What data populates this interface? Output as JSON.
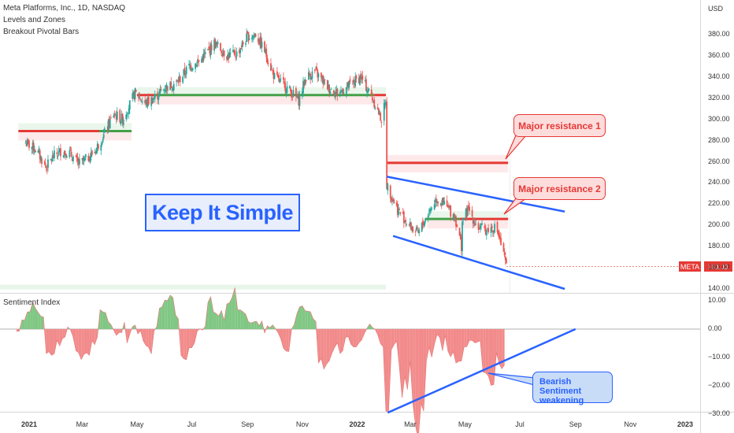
{
  "legend": {
    "title": "Meta Platforms, Inc., 1D, NASDAQ",
    "line2": "Levels and Zones",
    "line3": "Breakout Pivotal Bars"
  },
  "currency": "USD",
  "sentiment_title": "Sentiment Index",
  "keep_it_simple": "Keep It Simple",
  "callouts": {
    "major1": "Major resistance 1",
    "major2": "Major resistance 2",
    "bearish_line1": "Bearish Sentiment",
    "bearish_line2": "weakening"
  },
  "last_price": {
    "symbol": "META",
    "value": "161.11"
  },
  "colors": {
    "up": "#26a69a",
    "down": "#ef5350",
    "resistance": "#e53935",
    "support": "#43a047",
    "trend": "#2962ff",
    "sentiment_pos": "#81c784",
    "sentiment_neg": "#f28b8b"
  },
  "chart_data": [
    {
      "type": "candlestick",
      "title": "Meta Platforms, Inc., 1D, NASDAQ",
      "y_axis_ticks": [
        "380.00",
        "360.00",
        "340.00",
        "320.00",
        "300.00",
        "280.00",
        "260.00",
        "240.00",
        "220.00",
        "200.00",
        "180.00",
        "160.00",
        "140.00"
      ],
      "x_axis_ticks": [
        "2021",
        "Mar",
        "May",
        "Jul",
        "Sep",
        "Nov",
        "2022",
        "Mar",
        "May",
        "Jul",
        "Sep",
        "Nov",
        "2023"
      ],
      "ylim": [
        140,
        390
      ],
      "levels": [
        {
          "kind": "resistance",
          "price": 289,
          "from": "2020-12",
          "to": "2021-04"
        },
        {
          "kind": "support",
          "price": 289,
          "from": "2021-04",
          "to": "2021-05"
        },
        {
          "kind": "resistance",
          "price": 323,
          "from": "2021-05",
          "to": "2021-06"
        },
        {
          "kind": "support",
          "price": 323,
          "from": "2021-06",
          "to": "2022-01"
        },
        {
          "kind": "resistance",
          "price": 323,
          "from": "2022-01",
          "to": "2022-02"
        },
        {
          "kind": "resistance",
          "price": 259,
          "label": "Major resistance 1"
        },
        {
          "kind": "resistance",
          "price": 206,
          "label": "Major resistance 2"
        },
        {
          "kind": "support",
          "price": 206
        }
      ],
      "close_path": [
        [
          "2020-12-28",
          278
        ],
        [
          "2021-01-08",
          272
        ],
        [
          "2021-01-20",
          255
        ],
        [
          "2021-01-28",
          265
        ],
        [
          "2021-02-05",
          270
        ],
        [
          "2021-02-15",
          268
        ],
        [
          "2021-02-25",
          258
        ],
        [
          "2021-03-05",
          262
        ],
        [
          "2021-03-15",
          270
        ],
        [
          "2021-03-25",
          285
        ],
        [
          "2021-04-05",
          305
        ],
        [
          "2021-04-15",
          300
        ],
        [
          "2021-04-29",
          325
        ],
        [
          "2021-05-10",
          315
        ],
        [
          "2021-05-20",
          320
        ],
        [
          "2021-06-01",
          330
        ],
        [
          "2021-06-15",
          335
        ],
        [
          "2021-06-28",
          350
        ],
        [
          "2021-07-10",
          355
        ],
        [
          "2021-07-26",
          372
        ],
        [
          "2021-08-10",
          360
        ],
        [
          "2021-08-20",
          362
        ],
        [
          "2021-09-01",
          378
        ],
        [
          "2021-09-10",
          380
        ],
        [
          "2021-09-20",
          365
        ],
        [
          "2021-10-01",
          340
        ],
        [
          "2021-10-15",
          330
        ],
        [
          "2021-10-28",
          318
        ],
        [
          "2021-11-05",
          340
        ],
        [
          "2021-11-15",
          345
        ],
        [
          "2021-11-30",
          330
        ],
        [
          "2021-12-10",
          325
        ],
        [
          "2021-12-20",
          330
        ],
        [
          "2022-01-05",
          340
        ],
        [
          "2022-01-18",
          320
        ],
        [
          "2022-01-28",
          300
        ],
        [
          "2022-02-02",
          318
        ],
        [
          "2022-02-03",
          238
        ],
        [
          "2022-02-15",
          215
        ],
        [
          "2022-02-28",
          200
        ],
        [
          "2022-03-10",
          192
        ],
        [
          "2022-03-20",
          210
        ],
        [
          "2022-03-30",
          225
        ],
        [
          "2022-04-08",
          220
        ],
        [
          "2022-04-20",
          208
        ],
        [
          "2022-04-27",
          180
        ],
        [
          "2022-04-28",
          205
        ],
        [
          "2022-05-05",
          215
        ],
        [
          "2022-05-15",
          198
        ],
        [
          "2022-05-25",
          196
        ],
        [
          "2022-06-05",
          198
        ],
        [
          "2022-06-10",
          182
        ],
        [
          "2022-06-16",
          161.11
        ]
      ]
    },
    {
      "type": "area",
      "title": "Sentiment Index",
      "y_axis_ticks": [
        "10.00",
        "0.00",
        "−10.00",
        "−20.00",
        "−30.00"
      ],
      "ylim": [
        -30,
        12
      ],
      "x": [
        "2020-12",
        "2021-01",
        "2021-02",
        "2021-03",
        "2021-04",
        "2021-05",
        "2021-06",
        "2021-07",
        "2021-08",
        "2021-09",
        "2021-10",
        "2021-11",
        "2021-12",
        "2022-01",
        "2022-02",
        "2022-03",
        "2022-04",
        "2022-05",
        "2022-06"
      ],
      "values": [
        4,
        -5,
        -6,
        3,
        -4,
        6,
        -5,
        8,
        5,
        -3,
        4,
        -9,
        -3,
        -6,
        -28,
        -8,
        -7,
        -12,
        -8
      ]
    }
  ]
}
